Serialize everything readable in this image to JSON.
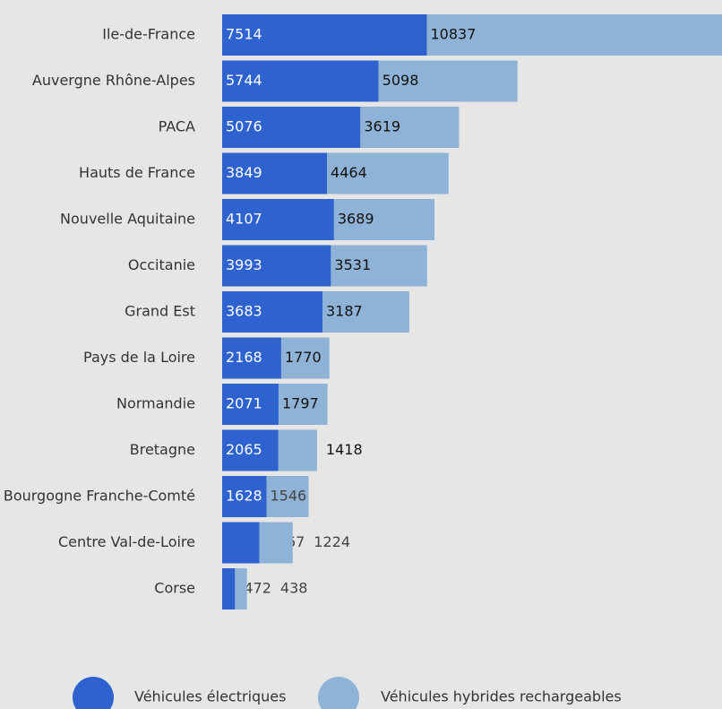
{
  "chart_data": {
    "type": "stacked-bar-horizontal",
    "categories": [
      "Ile-de-France",
      "Auvergne Rhône-Alpes",
      "PACA",
      "Hauts de France",
      "Nouvelle Aquitaine",
      "Occitanie",
      "Grand Est",
      "Pays de la Loire",
      "Normandie",
      "Bretagne",
      "Bourgogne Franche-Comté",
      "Centre Val-de-Loire",
      "Corse"
    ],
    "series": [
      {
        "name": "Véhicules électriques",
        "color": "#2d62cf",
        "values": [
          7514,
          5744,
          5076,
          3849,
          4107,
          3993,
          3683,
          2168,
          2071,
          2065,
          1628,
          1367,
          472
        ]
      },
      {
        "name": "Véhicules hybrides rechargeables",
        "color": "#8fb3d6",
        "values": [
          10837,
          5098,
          3619,
          4464,
          3689,
          3531,
          3187,
          1770,
          1797,
          1418,
          1546,
          1224,
          438
        ]
      }
    ]
  }
}
